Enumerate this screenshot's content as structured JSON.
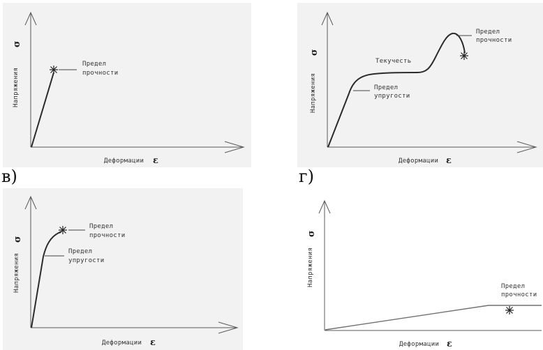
{
  "panels": {
    "a": {
      "ylabel": "Напряжения",
      "ysymbol": "σ",
      "xlabel": "Деформации",
      "xsymbol": "ε",
      "annotations": {
        "strength": [
          "Предел",
          "прочности"
        ]
      }
    },
    "b": {
      "ylabel": "Напряжения",
      "ysymbol": "σ",
      "xlabel": "Деформации",
      "xsymbol": "ε",
      "annotations": {
        "strength": [
          "Предел",
          "прочности"
        ],
        "flow": "Текучесть",
        "elastic": [
          "Предел",
          "упругости"
        ]
      }
    },
    "c": {
      "letter": "в)",
      "ylabel": "Напряжения",
      "ysymbol": "σ",
      "xlabel": "Деформации",
      "xsymbol": "ε",
      "annotations": {
        "strength": [
          "Предел",
          "прочности"
        ],
        "elastic": [
          "Предел",
          "упругости"
        ]
      }
    },
    "d": {
      "letter": "г)",
      "ylabel": "Напряжения",
      "ysymbol": "σ",
      "xlabel": "Деформации",
      "xsymbol": "ε",
      "annotations": {
        "strength": [
          "Предел",
          "прочности"
        ]
      }
    }
  }
}
